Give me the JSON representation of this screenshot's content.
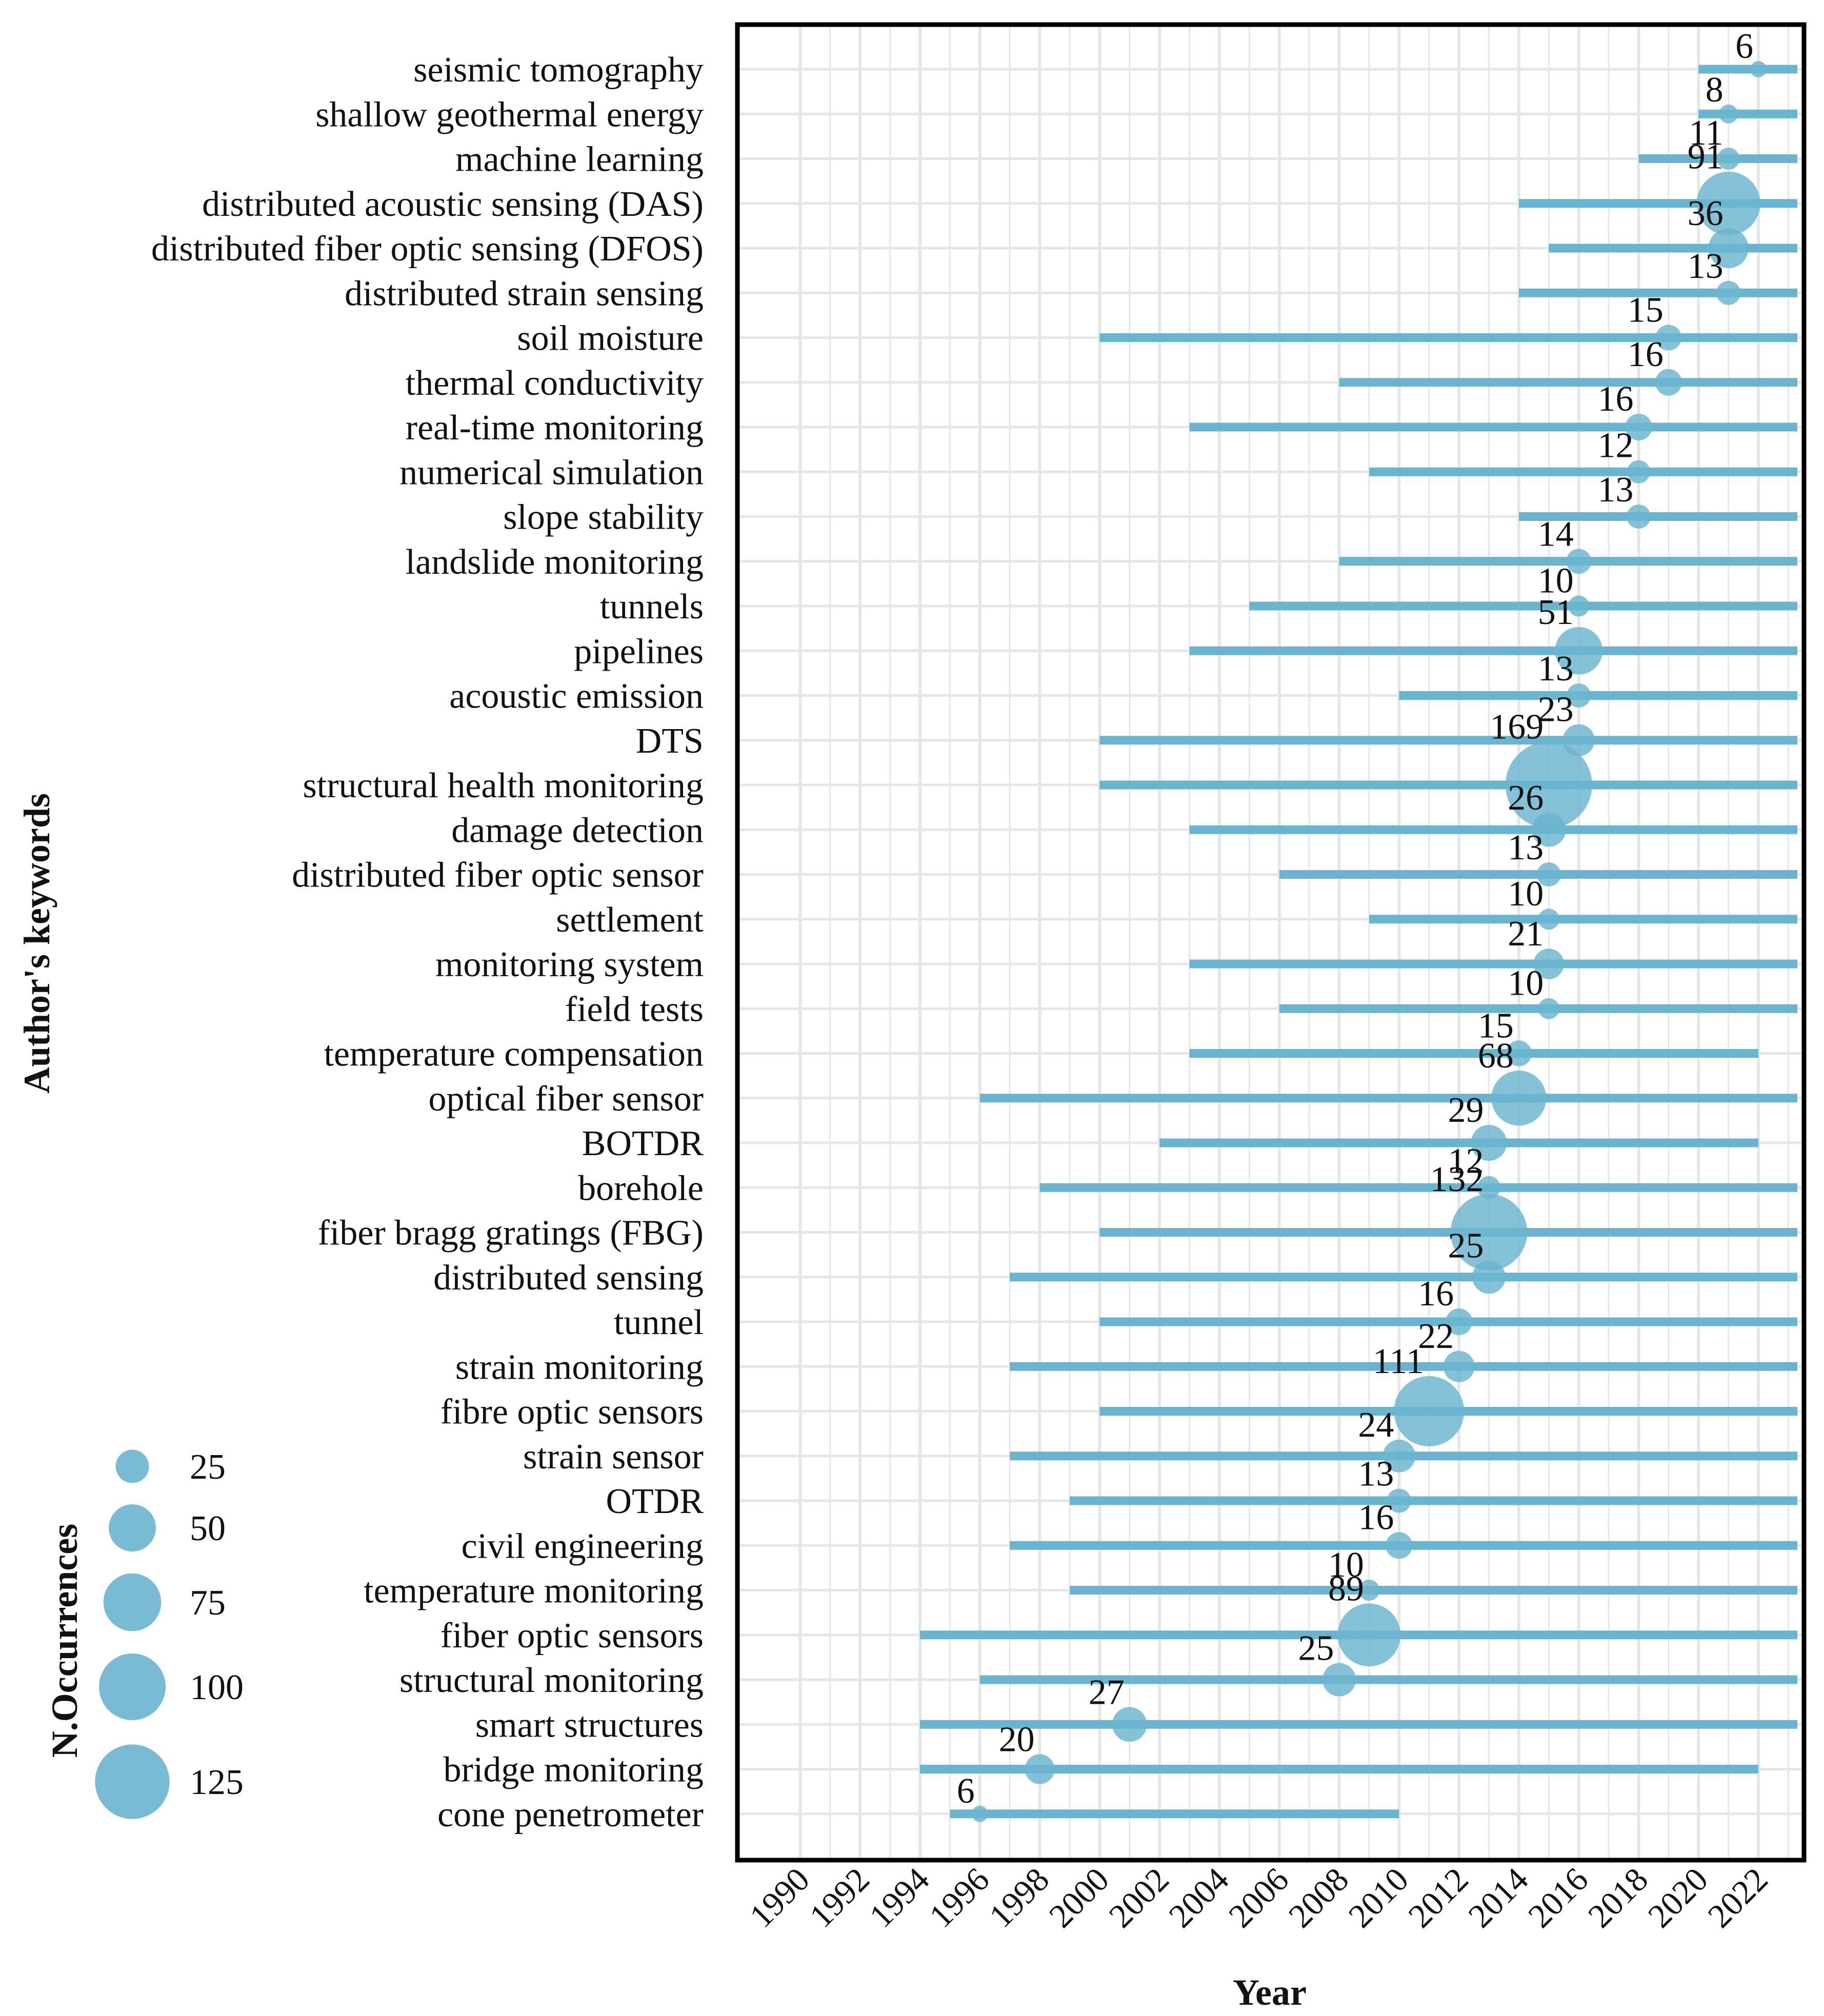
{
  "colors": {
    "accent": "#6ab4cf",
    "grid": "#e6e6e6",
    "frame": "#000000",
    "text": "#111111"
  },
  "chart_data": {
    "type": "scatter",
    "subtype": "bubble-timeline",
    "title": "",
    "xlabel": "Year",
    "ylabel": "Author's keywords",
    "xlim": [
      1989,
      2023.3
    ],
    "xticks": [
      1990,
      1992,
      1994,
      1996,
      1998,
      2000,
      2002,
      2004,
      2006,
      2008,
      2010,
      2012,
      2014,
      2016,
      2018,
      2020,
      2022
    ],
    "xtick_labels": [
      "1990",
      "1992",
      "1994",
      "1996",
      "1998",
      "2000",
      "2002",
      "2004",
      "2006",
      "2008",
      "2010",
      "2012",
      "2014",
      "2016",
      "2018",
      "2020",
      "2022"
    ],
    "grid": true,
    "series": [
      {
        "keyword": "seismic tomography",
        "start": 2020,
        "end": 2023.3,
        "year": 2022,
        "occurrences": 6
      },
      {
        "keyword": "shallow geothermal energy",
        "start": 2020,
        "end": 2023.3,
        "year": 2021,
        "occurrences": 8
      },
      {
        "keyword": "machine learning",
        "start": 2018,
        "end": 2023.3,
        "year": 2021,
        "occurrences": 11
      },
      {
        "keyword": "distributed acoustic sensing (DAS)",
        "start": 2014,
        "end": 2023.3,
        "year": 2021,
        "occurrences": 91
      },
      {
        "keyword": "distributed fiber optic sensing (DFOS)",
        "start": 2015,
        "end": 2023.3,
        "year": 2021,
        "occurrences": 36
      },
      {
        "keyword": "distributed strain sensing",
        "start": 2014,
        "end": 2023.3,
        "year": 2021,
        "occurrences": 13
      },
      {
        "keyword": "soil moisture",
        "start": 2000,
        "end": 2023.3,
        "year": 2019,
        "occurrences": 15
      },
      {
        "keyword": "thermal conductivity",
        "start": 2008,
        "end": 2023.3,
        "year": 2019,
        "occurrences": 16
      },
      {
        "keyword": "real-time monitoring",
        "start": 2003,
        "end": 2023.3,
        "year": 2018,
        "occurrences": 16
      },
      {
        "keyword": "numerical simulation",
        "start": 2009,
        "end": 2023.3,
        "year": 2018,
        "occurrences": 12
      },
      {
        "keyword": "slope stability",
        "start": 2014,
        "end": 2023.3,
        "year": 2018,
        "occurrences": 13
      },
      {
        "keyword": "landslide monitoring",
        "start": 2008,
        "end": 2023.3,
        "year": 2016,
        "occurrences": 14
      },
      {
        "keyword": "tunnels",
        "start": 2005,
        "end": 2023.3,
        "year": 2016,
        "occurrences": 10
      },
      {
        "keyword": "pipelines",
        "start": 2003,
        "end": 2023.3,
        "year": 2016,
        "occurrences": 51
      },
      {
        "keyword": "acoustic emission",
        "start": 2010,
        "end": 2023.3,
        "year": 2016,
        "occurrences": 13
      },
      {
        "keyword": "DTS",
        "start": 2000,
        "end": 2023.3,
        "year": 2016,
        "occurrences": 23
      },
      {
        "keyword": "structural health monitoring",
        "start": 2000,
        "end": 2023.3,
        "year": 2015,
        "occurrences": 169
      },
      {
        "keyword": "damage detection",
        "start": 2003,
        "end": 2023.3,
        "year": 2015,
        "occurrences": 26
      },
      {
        "keyword": "distributed fiber optic sensor",
        "start": 2006,
        "end": 2023.3,
        "year": 2015,
        "occurrences": 13
      },
      {
        "keyword": "settlement",
        "start": 2009,
        "end": 2023.3,
        "year": 2015,
        "occurrences": 10
      },
      {
        "keyword": "monitoring system",
        "start": 2003,
        "end": 2023.3,
        "year": 2015,
        "occurrences": 21
      },
      {
        "keyword": "field tests",
        "start": 2006,
        "end": 2023.3,
        "year": 2015,
        "occurrences": 10
      },
      {
        "keyword": "temperature compensation",
        "start": 2003,
        "end": 2022,
        "year": 2014,
        "occurrences": 15
      },
      {
        "keyword": "optical fiber sensor",
        "start": 1996,
        "end": 2023.3,
        "year": 2014,
        "occurrences": 68
      },
      {
        "keyword": "BOTDR",
        "start": 2002,
        "end": 2022,
        "year": 2013,
        "occurrences": 29
      },
      {
        "keyword": "borehole",
        "start": 1998,
        "end": 2023.3,
        "year": 2013,
        "occurrences": 12
      },
      {
        "keyword": "fiber bragg gratings (FBG)",
        "start": 2000,
        "end": 2023.3,
        "year": 2013,
        "occurrences": 132
      },
      {
        "keyword": "distributed sensing",
        "start": 1997,
        "end": 2023.3,
        "year": 2013,
        "occurrences": 25
      },
      {
        "keyword": "tunnel",
        "start": 2000,
        "end": 2023.3,
        "year": 2012,
        "occurrences": 16
      },
      {
        "keyword": "strain monitoring",
        "start": 1997,
        "end": 2023.3,
        "year": 2012,
        "occurrences": 22
      },
      {
        "keyword": "fibre optic sensors",
        "start": 2000,
        "end": 2023.3,
        "year": 2011,
        "occurrences": 111
      },
      {
        "keyword": "strain sensor",
        "start": 1997,
        "end": 2023.3,
        "year": 2010,
        "occurrences": 24
      },
      {
        "keyword": "OTDR",
        "start": 1999,
        "end": 2023.3,
        "year": 2010,
        "occurrences": 13
      },
      {
        "keyword": "civil engineering",
        "start": 1997,
        "end": 2023.3,
        "year": 2010,
        "occurrences": 16
      },
      {
        "keyword": "temperature monitoring",
        "start": 1999,
        "end": 2023.3,
        "year": 2009,
        "occurrences": 10
      },
      {
        "keyword": "fiber optic sensors",
        "start": 1994,
        "end": 2023.3,
        "year": 2009,
        "occurrences": 89
      },
      {
        "keyword": "structural monitoring",
        "start": 1996,
        "end": 2023.3,
        "year": 2008,
        "occurrences": 25
      },
      {
        "keyword": "smart structures",
        "start": 1994,
        "end": 2023.3,
        "year": 2001,
        "occurrences": 27
      },
      {
        "keyword": "bridge monitoring",
        "start": 1994,
        "end": 2022,
        "year": 1998,
        "occurrences": 20
      },
      {
        "keyword": "cone penetrometer",
        "start": 1995,
        "end": 2010,
        "year": 1996,
        "occurrences": 6
      }
    ],
    "legend": {
      "title": "N.Occurrences",
      "values": [
        25,
        50,
        75,
        100,
        125
      ],
      "labels": [
        "25",
        "50",
        "75",
        "100",
        "125"
      ],
      "placement": "bottom-left"
    }
  }
}
